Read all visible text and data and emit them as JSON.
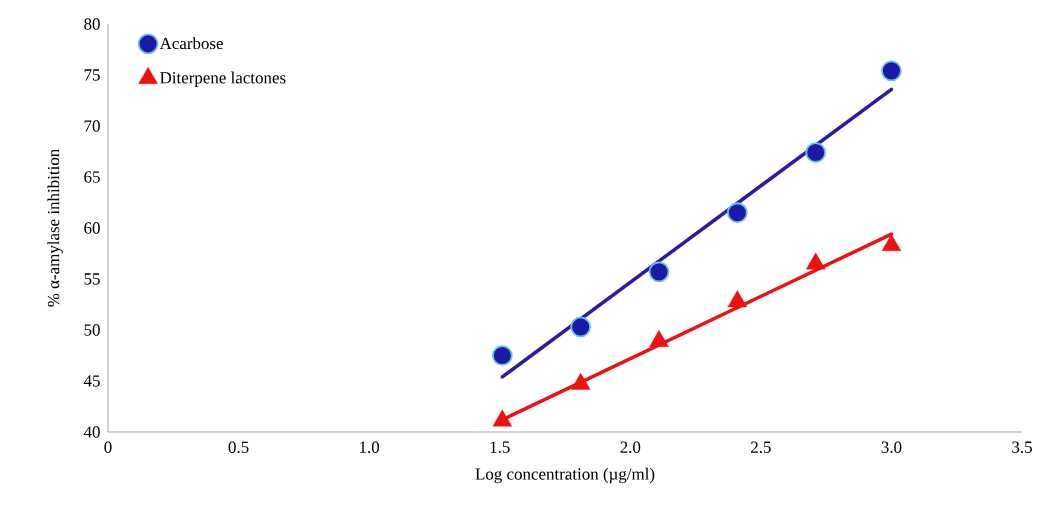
{
  "chart_data": {
    "type": "scatter",
    "xlabel": "Log concentration (µg/ml)",
    "ylabel": "% α-amylase inhibition",
    "xlim": [
      0,
      3.5
    ],
    "xticks": [
      0,
      0.5,
      {
        "value": 1,
        "label": "1.0"
      },
      1.5,
      {
        "value": 2,
        "label": "2.0"
      },
      2.5,
      {
        "value": 3,
        "label": "3.0"
      },
      3.5
    ],
    "ylim": [
      40,
      80
    ],
    "yticks": [
      40,
      45,
      50,
      55,
      60,
      65,
      70,
      75,
      80
    ],
    "grid": false,
    "legend": "top left",
    "series": [
      {
        "name": "Acarbose",
        "color": "#1a1aa6",
        "marker": "circle",
        "x": [
          1.51,
          1.81,
          2.11,
          2.41,
          2.71,
          3.0
        ],
        "values": [
          47.5,
          50.3,
          55.7,
          61.5,
          67.4,
          75.4
        ]
      },
      {
        "name": "Diterpene lactones",
        "color": "#ee1111",
        "marker": "triangle",
        "x": [
          1.51,
          1.81,
          2.11,
          2.41,
          2.71,
          3.0
        ],
        "values": [
          41.1,
          44.7,
          48.9,
          52.8,
          56.5,
          58.3
        ]
      },
      {
        "type": "line",
        "color": "#2b1aa8",
        "marker": "none",
        "x": [
          1.51,
          3.0
        ],
        "values": [
          45.4,
          73.6
        ]
      },
      {
        "type": "line",
        "color": "#ee1111",
        "marker": "none",
        "x": [
          1.51,
          3.0
        ],
        "values": [
          41.2,
          59.4
        ]
      }
    ]
  }
}
